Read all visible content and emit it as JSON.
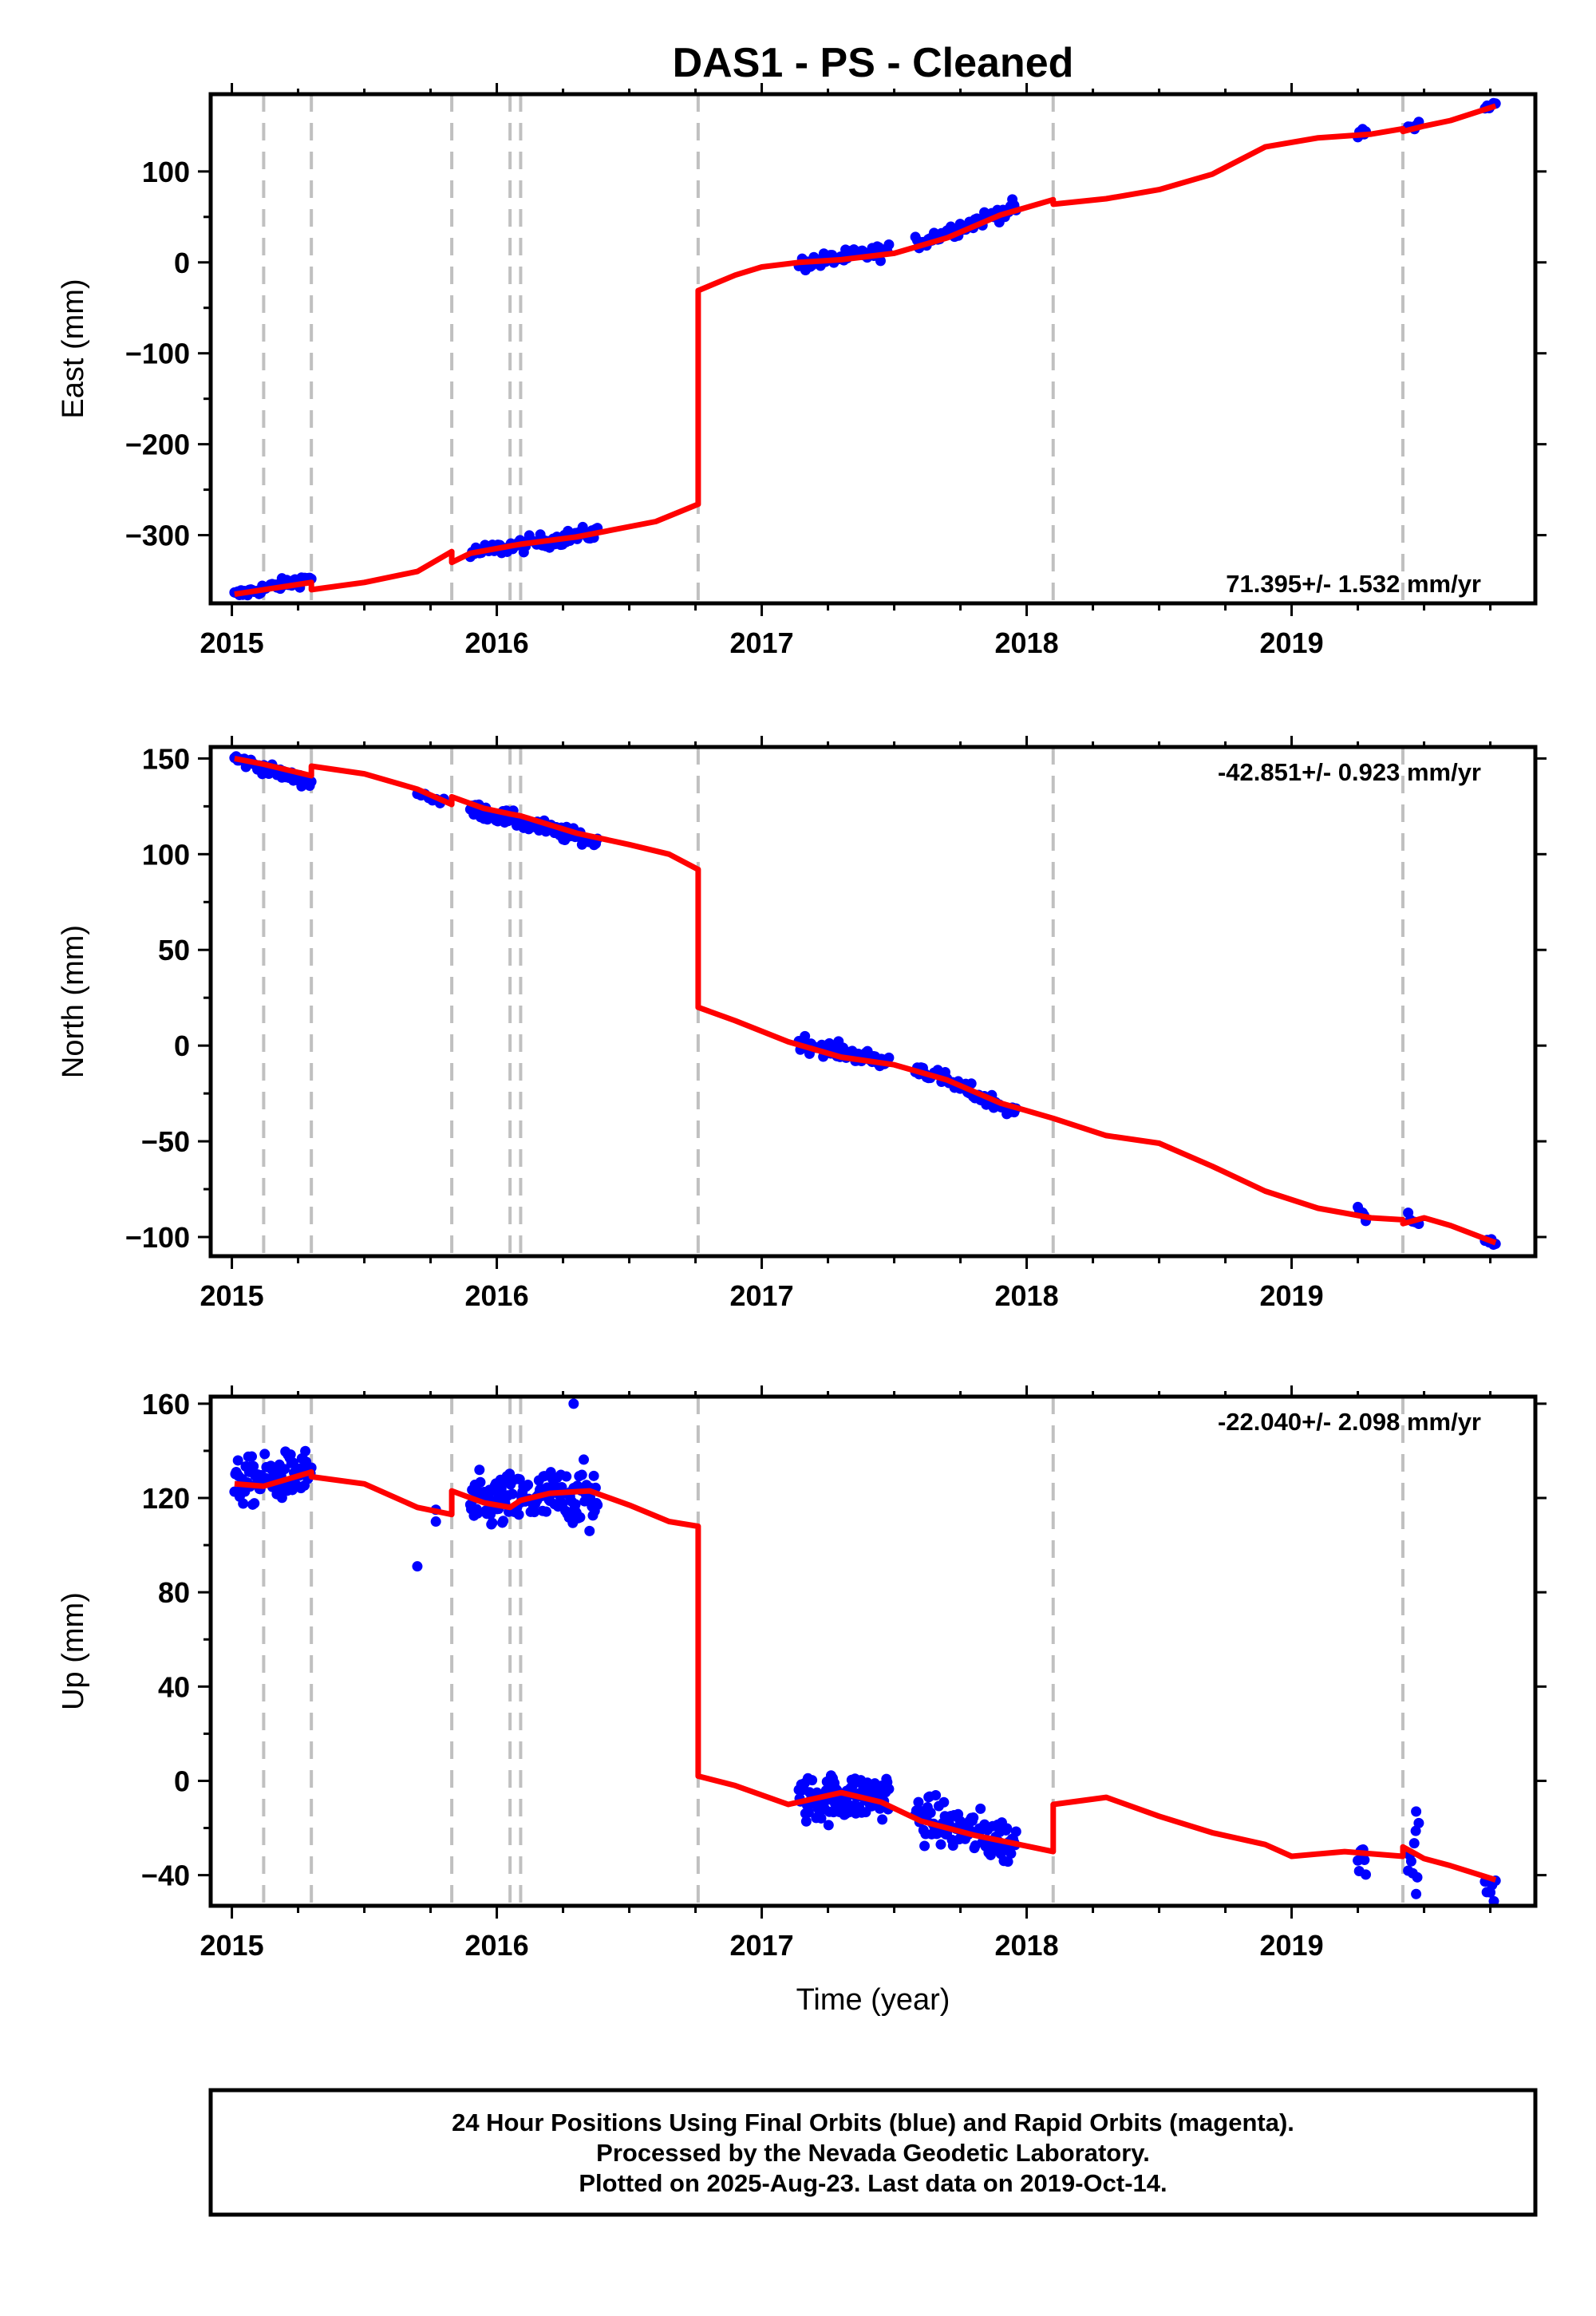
{
  "title": "DAS1  - PS - Cleaned",
  "colors": {
    "data": "#0000ff",
    "model": "#ff0000",
    "steps": "#c0c0c0",
    "frame": "#000000"
  },
  "xlabel": "Time (year)",
  "footer": {
    "line1": "24 Hour Positions Using Final Orbits (blue) and Rapid Orbits (magenta).",
    "line2": "Processed by the Nevada Geodetic Laboratory.",
    "line3": "Plotted on 2025-Aug-23. Last data on 2019-Oct-14."
  },
  "chart_data": [
    {
      "type": "scatter",
      "component": "east",
      "ylabel": "East (mm)",
      "rate_label": "71.395+/- 1.532 mm/yr",
      "xlim": [
        2014.92,
        2019.92
      ],
      "ylim": [
        -375,
        185
      ],
      "xticks": [
        2015,
        2016,
        2017,
        2018,
        2019
      ],
      "yticks": [
        100,
        0,
        -100,
        -200,
        -300
      ],
      "ytick_labels": [
        "100",
        "0",
        "−100",
        "−200",
        "−300"
      ],
      "step_epochs": [
        2015.12,
        2015.3,
        2015.83,
        2016.05,
        2016.09,
        2016.76,
        2018.1,
        2019.42
      ],
      "data_segments": [
        {
          "t": [
            2015.01,
            2015.3
          ],
          "y": [
            -366,
            -347
          ],
          "noise": 3,
          "n": 48
        },
        {
          "t": [
            2015.9,
            2016.38
          ],
          "y": [
            -320,
            -297
          ],
          "noise": 4,
          "n": 70
        },
        {
          "t": [
            2017.14,
            2017.48
          ],
          "y": [
            -2,
            13
          ],
          "noise": 4,
          "n": 55
        },
        {
          "t": [
            2017.58,
            2017.96
          ],
          "y": [
            21,
            61
          ],
          "noise": 4,
          "n": 55
        },
        {
          "t": [
            2019.25,
            2019.28
          ],
          "y": [
            138,
            144
          ],
          "noise": 3,
          "n": 6
        },
        {
          "t": [
            2019.44,
            2019.48
          ],
          "y": [
            147,
            152
          ],
          "noise": 3,
          "n": 6
        },
        {
          "t": [
            2019.73,
            2019.77
          ],
          "y": [
            170,
            175
          ],
          "noise": 2,
          "n": 6
        }
      ],
      "model": [
        [
          [
            2015.01,
            -365
          ],
          [
            2015.12,
            -360
          ],
          [
            2015.3,
            -352
          ]
        ],
        [
          [
            2015.3,
            -360
          ],
          [
            2015.5,
            -352
          ],
          [
            2015.7,
            -340
          ],
          [
            2015.83,
            -318
          ]
        ],
        [
          [
            2015.83,
            -330
          ],
          [
            2015.9,
            -320
          ],
          [
            2016.05,
            -312
          ],
          [
            2016.09,
            -310
          ],
          [
            2016.3,
            -302
          ],
          [
            2016.6,
            -285
          ],
          [
            2016.76,
            -266
          ]
        ],
        [
          [
            2016.76,
            -31
          ],
          [
            2016.9,
            -14
          ],
          [
            2017.0,
            -5
          ],
          [
            2017.14,
            0
          ],
          [
            2017.3,
            3
          ],
          [
            2017.5,
            10
          ],
          [
            2017.7,
            27
          ],
          [
            2017.9,
            52
          ],
          [
            2018.1,
            69
          ]
        ],
        [
          [
            2018.1,
            64
          ],
          [
            2018.3,
            70
          ],
          [
            2018.5,
            80
          ],
          [
            2018.7,
            97
          ],
          [
            2018.9,
            127
          ],
          [
            2019.1,
            137
          ],
          [
            2019.3,
            141
          ],
          [
            2019.42,
            147
          ]
        ],
        [
          [
            2019.42,
            144
          ],
          [
            2019.5,
            150
          ],
          [
            2019.6,
            156
          ],
          [
            2019.77,
            172
          ]
        ]
      ]
    },
    {
      "type": "scatter",
      "component": "north",
      "ylabel": "North (mm)",
      "rate_label": "-42.851+/- 0.923 mm/yr",
      "xlim": [
        2014.92,
        2019.92
      ],
      "ylim": [
        -110,
        156
      ],
      "xticks": [
        2015,
        2016,
        2017,
        2018,
        2019
      ],
      "yticks": [
        150,
        100,
        50,
        0,
        -50,
        -100
      ],
      "ytick_labels": [
        "150",
        "100",
        "50",
        "0",
        "−50",
        "−100"
      ],
      "step_epochs": [
        2015.12,
        2015.3,
        2015.83,
        2016.05,
        2016.09,
        2016.76,
        2018.1,
        2019.42
      ],
      "data_segments": [
        {
          "t": [
            2015.01,
            2015.3
          ],
          "y": [
            150,
            137
          ],
          "noise": 1.5,
          "n": 48
        },
        {
          "t": [
            2015.7,
            2015.8
          ],
          "y": [
            133,
            126
          ],
          "noise": 1.5,
          "n": 8
        },
        {
          "t": [
            2015.9,
            2016.38
          ],
          "y": [
            124,
            106
          ],
          "noise": 2,
          "n": 75
        },
        {
          "t": [
            2017.14,
            2017.48
          ],
          "y": [
            2,
            -9
          ],
          "noise": 2,
          "n": 60
        },
        {
          "t": [
            2017.58,
            2017.96
          ],
          "y": [
            -11,
            -35
          ],
          "noise": 2,
          "n": 55
        },
        {
          "t": [
            2019.25,
            2019.28
          ],
          "y": [
            -86,
            -90
          ],
          "noise": 1.5,
          "n": 6
        },
        {
          "t": [
            2019.44,
            2019.48
          ],
          "y": [
            -88,
            -92
          ],
          "noise": 1.5,
          "n": 6
        },
        {
          "t": [
            2019.73,
            2019.77
          ],
          "y": [
            -101,
            -104
          ],
          "noise": 1,
          "n": 6
        }
      ],
      "model": [
        [
          [
            2015.01,
            150
          ],
          [
            2015.12,
            147
          ],
          [
            2015.3,
            141
          ]
        ],
        [
          [
            2015.3,
            146
          ],
          [
            2015.5,
            142
          ],
          [
            2015.7,
            134
          ],
          [
            2015.83,
            126
          ]
        ],
        [
          [
            2015.83,
            130
          ],
          [
            2015.95,
            124
          ],
          [
            2016.05,
            121
          ],
          [
            2016.09,
            120
          ],
          [
            2016.3,
            111
          ],
          [
            2016.5,
            105
          ],
          [
            2016.65,
            100
          ],
          [
            2016.76,
            92
          ]
        ],
        [
          [
            2016.76,
            20
          ],
          [
            2016.9,
            13
          ],
          [
            2017.1,
            2
          ],
          [
            2017.3,
            -6
          ],
          [
            2017.5,
            -10
          ],
          [
            2017.7,
            -18
          ],
          [
            2017.9,
            -30
          ],
          [
            2018.1,
            -38
          ]
        ],
        [
          [
            2018.1,
            -38
          ],
          [
            2018.3,
            -47
          ],
          [
            2018.5,
            -51
          ],
          [
            2018.7,
            -63
          ],
          [
            2018.9,
            -76
          ],
          [
            2019.1,
            -85
          ],
          [
            2019.3,
            -90
          ],
          [
            2019.42,
            -91
          ]
        ],
        [
          [
            2019.42,
            -93
          ],
          [
            2019.5,
            -90
          ],
          [
            2019.6,
            -94
          ],
          [
            2019.77,
            -103
          ]
        ]
      ]
    },
    {
      "type": "scatter",
      "component": "up",
      "ylabel": "Up (mm)",
      "rate_label": "-22.040+/- 2.098 mm/yr",
      "xlim": [
        2014.92,
        2019.92
      ],
      "ylim": [
        -53,
        163
      ],
      "xticks": [
        2015,
        2016,
        2017,
        2018,
        2019
      ],
      "yticks": [
        160,
        120,
        80,
        40,
        0,
        -40
      ],
      "ytick_labels": [
        "160",
        "120",
        "80",
        "40",
        "0",
        "−40"
      ],
      "step_epochs": [
        2015.12,
        2015.3,
        2015.83,
        2016.05,
        2016.09,
        2016.76,
        2018.1,
        2019.42
      ],
      "data_segments": [
        {
          "t": [
            2015.01,
            2015.3
          ],
          "y": [
            126,
            131
          ],
          "noise": 5,
          "n": 90
        },
        {
          "t": [
            2015.9,
            2016.38
          ],
          "y": [
            117,
            122
          ],
          "noise": 6,
          "n": 140
        },
        {
          "t": [
            2017.14,
            2017.48
          ],
          "y": [
            -8,
            -6
          ],
          "noise": 5,
          "n": 110
        },
        {
          "t": [
            2017.58,
            2017.96
          ],
          "y": [
            -15,
            -27
          ],
          "noise": 5,
          "n": 100
        },
        {
          "t": [
            2019.25,
            2019.28
          ],
          "y": [
            -30,
            -30
          ],
          "noise": 5,
          "n": 7
        },
        {
          "t": [
            2019.44,
            2019.48
          ],
          "y": [
            -30,
            -30
          ],
          "noise": 7,
          "n": 8
        },
        {
          "t": [
            2019.73,
            2019.77
          ],
          "y": [
            -40,
            -42
          ],
          "noise": 4,
          "n": 7
        }
      ],
      "outliers": [
        {
          "t": 2015.7,
          "y": 91
        },
        {
          "t": 2015.77,
          "y": 110
        },
        {
          "t": 2015.77,
          "y": 115
        },
        {
          "t": 2016.29,
          "y": 160
        },
        {
          "t": 2016.35,
          "y": 106
        },
        {
          "t": 2019.47,
          "y": -48
        },
        {
          "t": 2019.47,
          "y": -13
        }
      ],
      "model": [
        [
          [
            2015.01,
            126
          ],
          [
            2015.12,
            125
          ],
          [
            2015.3,
            131
          ]
        ],
        [
          [
            2015.3,
            129
          ],
          [
            2015.5,
            126
          ],
          [
            2015.7,
            116
          ],
          [
            2015.83,
            113
          ]
        ],
        [
          [
            2015.83,
            123
          ],
          [
            2015.95,
            118
          ],
          [
            2016.05,
            116
          ],
          [
            2016.09,
            119
          ],
          [
            2016.2,
            122
          ],
          [
            2016.35,
            123
          ],
          [
            2016.5,
            117
          ],
          [
            2016.65,
            110
          ],
          [
            2016.76,
            108
          ]
        ],
        [
          [
            2016.76,
            2
          ],
          [
            2016.9,
            -2
          ],
          [
            2017.1,
            -10
          ],
          [
            2017.3,
            -5
          ],
          [
            2017.45,
            -9
          ],
          [
            2017.6,
            -17
          ],
          [
            2017.8,
            -23
          ],
          [
            2018.1,
            -30
          ]
        ],
        [
          [
            2018.1,
            -10
          ],
          [
            2018.3,
            -7
          ],
          [
            2018.5,
            -15
          ],
          [
            2018.7,
            -22
          ],
          [
            2018.9,
            -27
          ],
          [
            2019.0,
            -32
          ],
          [
            2019.2,
            -30
          ],
          [
            2019.42,
            -32
          ]
        ],
        [
          [
            2019.42,
            -28
          ],
          [
            2019.5,
            -33
          ],
          [
            2019.6,
            -36
          ],
          [
            2019.77,
            -42
          ]
        ]
      ]
    }
  ]
}
